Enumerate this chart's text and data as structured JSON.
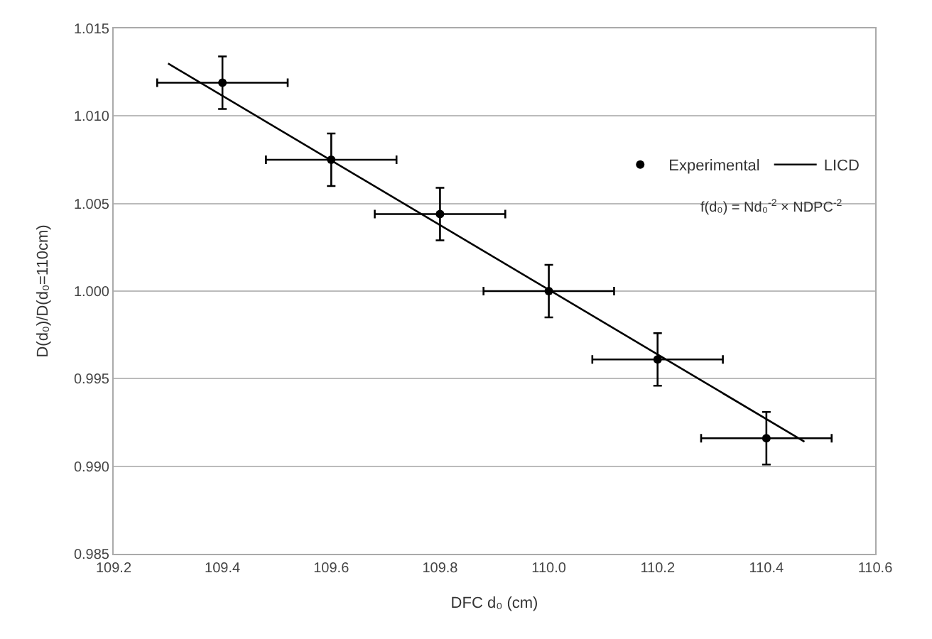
{
  "chart_data": {
    "type": "scatter",
    "xlabel": "DFC d₀ (cm)",
    "ylabel": "D(d₀)/D(d₀=110cm)",
    "xlim": [
      109.2,
      110.6
    ],
    "xticks": [
      {
        "value": 109.2,
        "label": "109.2"
      },
      {
        "value": 109.4,
        "label": "109.4"
      },
      {
        "value": 109.6,
        "label": "109.6"
      },
      {
        "value": 109.8,
        "label": "109.8"
      },
      {
        "value": 110.0,
        "label": "110.0"
      },
      {
        "value": 110.2,
        "label": "110.2"
      },
      {
        "value": 110.4,
        "label": "110.4"
      },
      {
        "value": 110.6,
        "label": "110.6"
      }
    ],
    "ylim": [
      0.985,
      1.015
    ],
    "yticks": [
      0.985,
      {
        "value": 0.99,
        "label": "0.990"
      },
      0.995,
      {
        "value": 1.0,
        "label": "1.000"
      },
      1.005,
      {
        "value": 1.01,
        "label": "1.010"
      },
      1.015
    ],
    "grid": "y",
    "legend": "top right",
    "annotations": [
      "f(d₀) = Nd₀$^{-2}$ × NDPC$^{-2}$"
    ],
    "series": [
      {
        "name": "Experimental",
        "color": "#000000",
        "marker": "circle",
        "x": [
          109.4,
          109.6,
          109.8,
          110.0,
          110.2,
          110.4
        ],
        "values": [
          1.0119,
          1.0075,
          1.0044,
          1.0,
          0.9961,
          0.9916
        ],
        "errors": [
          0.0015,
          0.0015,
          0.0015,
          0.0015,
          0.0015,
          0.0015
        ],
        "xerrors": [
          0.12,
          0.12,
          0.12,
          0.12,
          0.12,
          0.12
        ]
      },
      {
        "name": "LICD",
        "type": "line",
        "color": "#000000",
        "line_style": "solid",
        "x": [
          109.3,
          110.47
        ],
        "values": [
          1.013,
          0.9914
        ]
      }
    ]
  }
}
